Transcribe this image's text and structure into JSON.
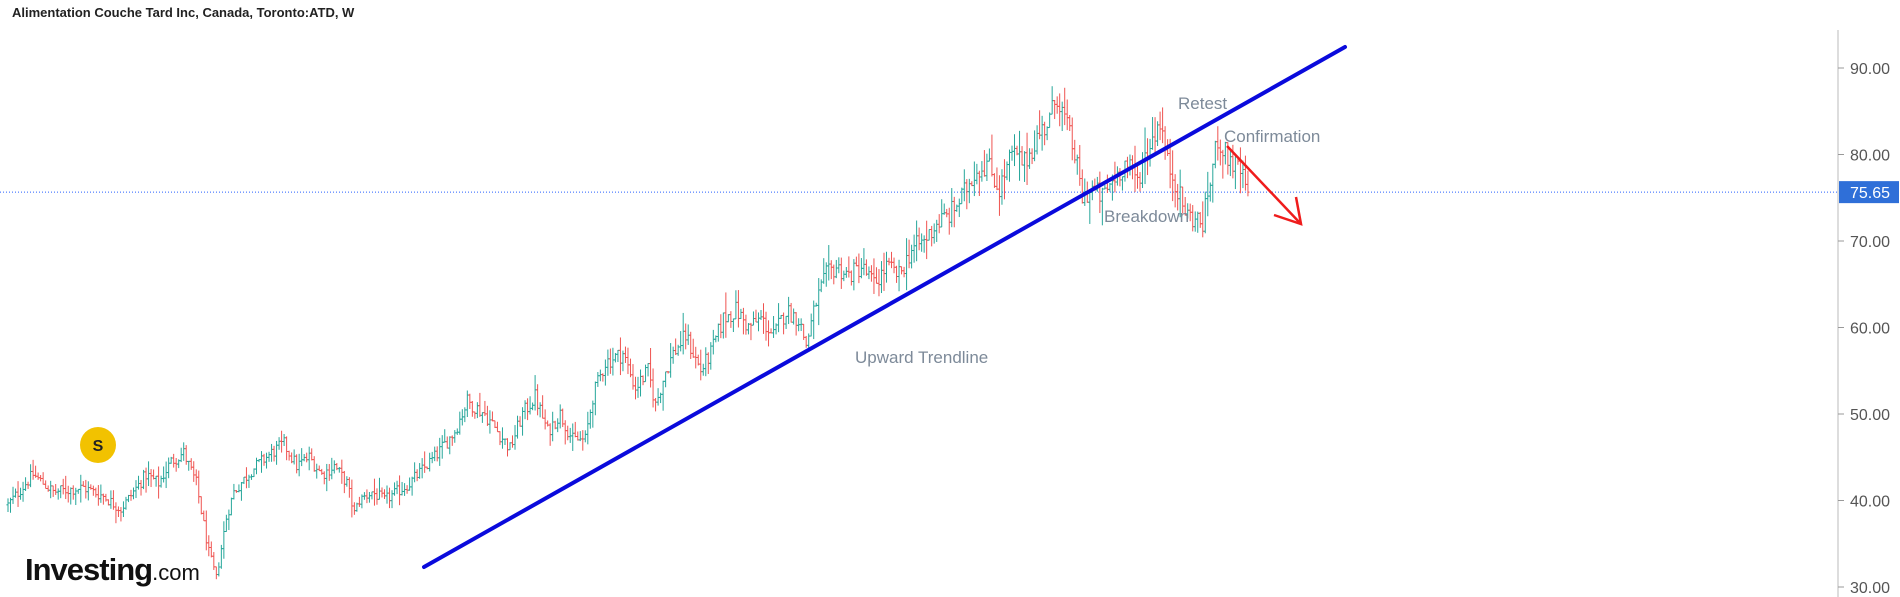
{
  "header": {
    "title": "Alimentation Couche Tard Inc, Canada, Toronto:ATD, W"
  },
  "logo": {
    "brand": "Investing",
    "suffix": ".com"
  },
  "colors": {
    "up": "#26a69a",
    "down": "#ef5350",
    "trendline": "#0a0adc",
    "arrow": "#ef1c1c",
    "price_line": "#2962ff",
    "price_tag_bg": "#2f6fd8",
    "marker": "#f2c200"
  },
  "chart_data": {
    "type": "ohlc",
    "interval": "W",
    "ylim": [
      28.5,
      93.5
    ],
    "y_ticks": [
      {
        "value": 90,
        "label": "90.00"
      },
      {
        "value": 80,
        "label": "80.00"
      },
      {
        "value": 70,
        "label": "70.00"
      },
      {
        "value": 60,
        "label": "60.00"
      },
      {
        "value": 50,
        "label": "50.00"
      },
      {
        "value": 40,
        "label": "40.00"
      },
      {
        "value": 30,
        "label": "30.00"
      }
    ],
    "last_price": {
      "value": 75.65,
      "label": "75.65"
    },
    "bars": 250,
    "close_path": [
      [
        0,
        39.5
      ],
      [
        10,
        43
      ],
      [
        18,
        41
      ],
      [
        30,
        41.5
      ],
      [
        38,
        40.5
      ],
      [
        45,
        39
      ],
      [
        55,
        43
      ],
      [
        60,
        42
      ],
      [
        65,
        44.5
      ],
      [
        70,
        45.5
      ],
      [
        75,
        42
      ],
      [
        80,
        34
      ],
      [
        83,
        31
      ],
      [
        87,
        38
      ],
      [
        90,
        41
      ],
      [
        97,
        43.5
      ],
      [
        105,
        45.5
      ],
      [
        110,
        46.5
      ],
      [
        115,
        44
      ],
      [
        120,
        45
      ],
      [
        125,
        43
      ],
      [
        130,
        44
      ],
      [
        135,
        42
      ],
      [
        138,
        38.5
      ],
      [
        140,
        40
      ],
      [
        145,
        41
      ],
      [
        150,
        40
      ],
      [
        160,
        42
      ],
      [
        170,
        45
      ],
      [
        178,
        48
      ],
      [
        183,
        51.5
      ],
      [
        190,
        50
      ],
      [
        195,
        48
      ],
      [
        200,
        46
      ],
      [
        205,
        50
      ],
      [
        210,
        52
      ],
      [
        215,
        48
      ],
      [
        220,
        50
      ],
      [
        225,
        47
      ],
      [
        230,
        47
      ],
      [
        233,
        52
      ],
      [
        238,
        56
      ],
      [
        245,
        57
      ],
      [
        250,
        53
      ],
      [
        255,
        55
      ],
      [
        258,
        51
      ],
      [
        262,
        55
      ],
      [
        265,
        57
      ],
      [
        270,
        59
      ],
      [
        273,
        57
      ],
      [
        276,
        55
      ],
      [
        280,
        57
      ],
      [
        285,
        61
      ],
      [
        290,
        62
      ],
      [
        295,
        60
      ],
      [
        300,
        61
      ],
      [
        305,
        59
      ],
      [
        310,
        62
      ],
      [
        315,
        61
      ],
      [
        318,
        58
      ],
      [
        322,
        63
      ],
      [
        326,
        66
      ],
      [
        330,
        67
      ],
      [
        335,
        66
      ],
      [
        340,
        67
      ],
      [
        345,
        65
      ],
      [
        350,
        67
      ],
      [
        355,
        66
      ],
      [
        360,
        69
      ],
      [
        365,
        70
      ],
      [
        370,
        72
      ],
      [
        375,
        73
      ],
      [
        380,
        75
      ],
      [
        385,
        78
      ],
      [
        390,
        79
      ],
      [
        395,
        76
      ],
      [
        400,
        80
      ],
      [
        405,
        79
      ],
      [
        410,
        82
      ],
      [
        415,
        84
      ],
      [
        418,
        87
      ],
      [
        420,
        85
      ],
      [
        425,
        80
      ],
      [
        428,
        75
      ],
      [
        432,
        76
      ],
      [
        436,
        75
      ],
      [
        440,
        77
      ],
      [
        445,
        79
      ],
      [
        450,
        77
      ],
      [
        453,
        80
      ],
      [
        456,
        82
      ],
      [
        459,
        84
      ],
      [
        462,
        79
      ],
      [
        465,
        77
      ],
      [
        468,
        74
      ],
      [
        470,
        73
      ],
      [
        473,
        72.5
      ],
      [
        476,
        72
      ],
      [
        479,
        77
      ],
      [
        482,
        82
      ],
      [
        485,
        80
      ],
      [
        488,
        79
      ],
      [
        491,
        78
      ],
      [
        494,
        75.65
      ]
    ],
    "annotations": [
      {
        "text": "Upward Trendline",
        "type": "trendline",
        "x": 0,
        "y": 0
      },
      {
        "text": "Retest"
      },
      {
        "text": "Confirmation"
      },
      {
        "text": "Breakdown"
      }
    ],
    "marker": {
      "label": "S",
      "bar": 32
    }
  }
}
